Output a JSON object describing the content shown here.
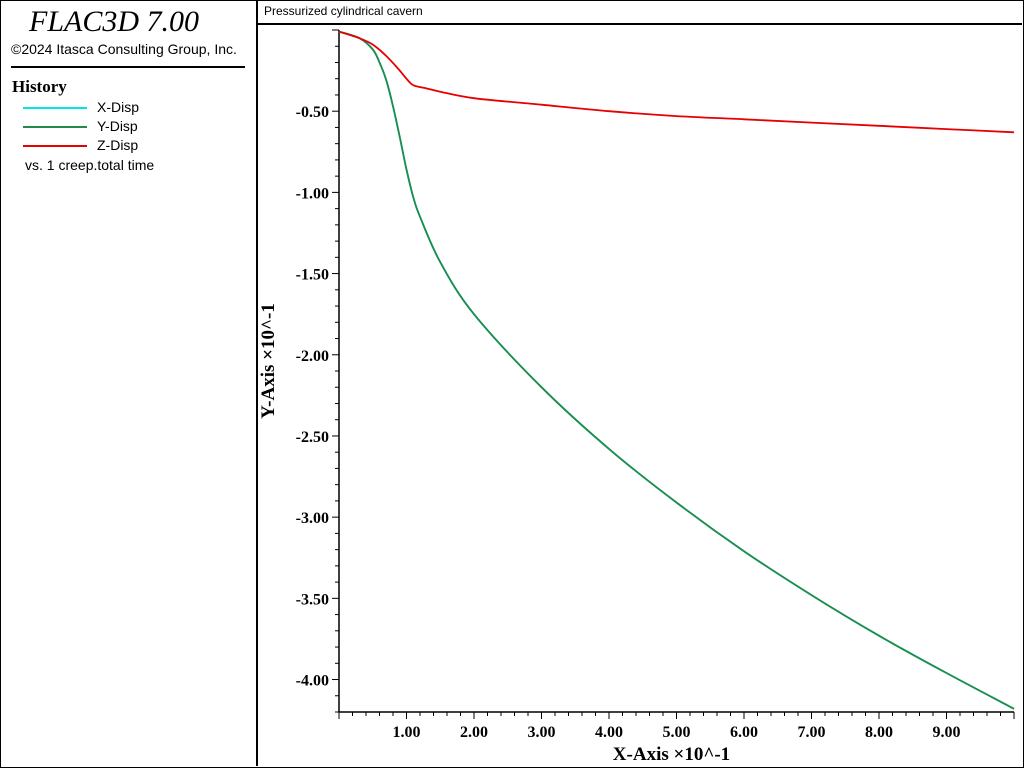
{
  "app": {
    "title": "FLAC3D 7.00",
    "copyright": "©2024 Itasca Consulting Group, Inc."
  },
  "legend": {
    "heading": "History",
    "items": [
      {
        "label": "X-Disp",
        "color": "#00e5e5"
      },
      {
        "label": "Y-Disp",
        "color": "#228b4a"
      },
      {
        "label": "Z-Disp",
        "color": "#e60000"
      }
    ],
    "vs_label": "vs. 1 creep.total time"
  },
  "chart_data": {
    "type": "line",
    "title": "Pressurized cylindrical cavern",
    "xlabel": "X-Axis ×10^-1",
    "ylabel": "Y-Axis ×10^-1",
    "xlim": [
      0,
      10
    ],
    "ylim": [
      -4.2,
      0
    ],
    "xticks": [
      1,
      2,
      3,
      4,
      5,
      6,
      7,
      8,
      9
    ],
    "xtick_labels": [
      "1.00",
      "2.00",
      "3.00",
      "4.00",
      "5.00",
      "6.00",
      "7.00",
      "8.00",
      "9.00"
    ],
    "yticks": [
      -0.5,
      -1,
      -1.5,
      -2,
      -2.5,
      -3,
      -3.5,
      -4
    ],
    "ytick_labels": [
      "-0.50",
      "-1.00",
      "-1.50",
      "-2.00",
      "-2.50",
      "-3.00",
      "-3.50",
      "-4.00"
    ],
    "series": [
      {
        "name": "X-Disp",
        "color": "#00e5e5",
        "x": [
          0.0,
          0.3,
          0.5,
          0.6,
          0.7,
          0.8,
          0.9,
          1.0,
          1.1,
          1.2,
          1.5,
          2.0,
          3.0,
          4.0,
          5.0,
          6.0,
          7.0,
          8.0,
          9.0,
          10.0
        ],
        "y": [
          -0.01,
          -0.05,
          -0.12,
          -0.2,
          -0.31,
          -0.47,
          -0.66,
          -0.86,
          -1.03,
          -1.15,
          -1.43,
          -1.75,
          -2.2,
          -2.58,
          -2.91,
          -3.21,
          -3.48,
          -3.73,
          -3.96,
          -4.18
        ]
      },
      {
        "name": "Y-Disp",
        "color": "#228b4a",
        "x": [
          0.0,
          0.3,
          0.5,
          0.6,
          0.7,
          0.8,
          0.9,
          1.0,
          1.1,
          1.2,
          1.5,
          2.0,
          3.0,
          4.0,
          5.0,
          6.0,
          7.0,
          8.0,
          9.0,
          10.0
        ],
        "y": [
          -0.01,
          -0.05,
          -0.12,
          -0.2,
          -0.31,
          -0.47,
          -0.66,
          -0.86,
          -1.03,
          -1.15,
          -1.43,
          -1.75,
          -2.2,
          -2.58,
          -2.91,
          -3.21,
          -3.48,
          -3.73,
          -3.96,
          -4.18
        ]
      },
      {
        "name": "Z-Disp",
        "color": "#e60000",
        "x": [
          0.0,
          0.3,
          0.5,
          0.7,
          0.9,
          1.0,
          1.1,
          1.3,
          1.5,
          2.0,
          3.0,
          4.0,
          5.0,
          6.0,
          7.0,
          8.0,
          9.0,
          10.0
        ],
        "y": [
          -0.01,
          -0.05,
          -0.09,
          -0.16,
          -0.25,
          -0.3,
          -0.34,
          -0.36,
          -0.38,
          -0.42,
          -0.46,
          -0.5,
          -0.53,
          -0.55,
          -0.57,
          -0.59,
          -0.61,
          -0.63
        ]
      }
    ]
  }
}
